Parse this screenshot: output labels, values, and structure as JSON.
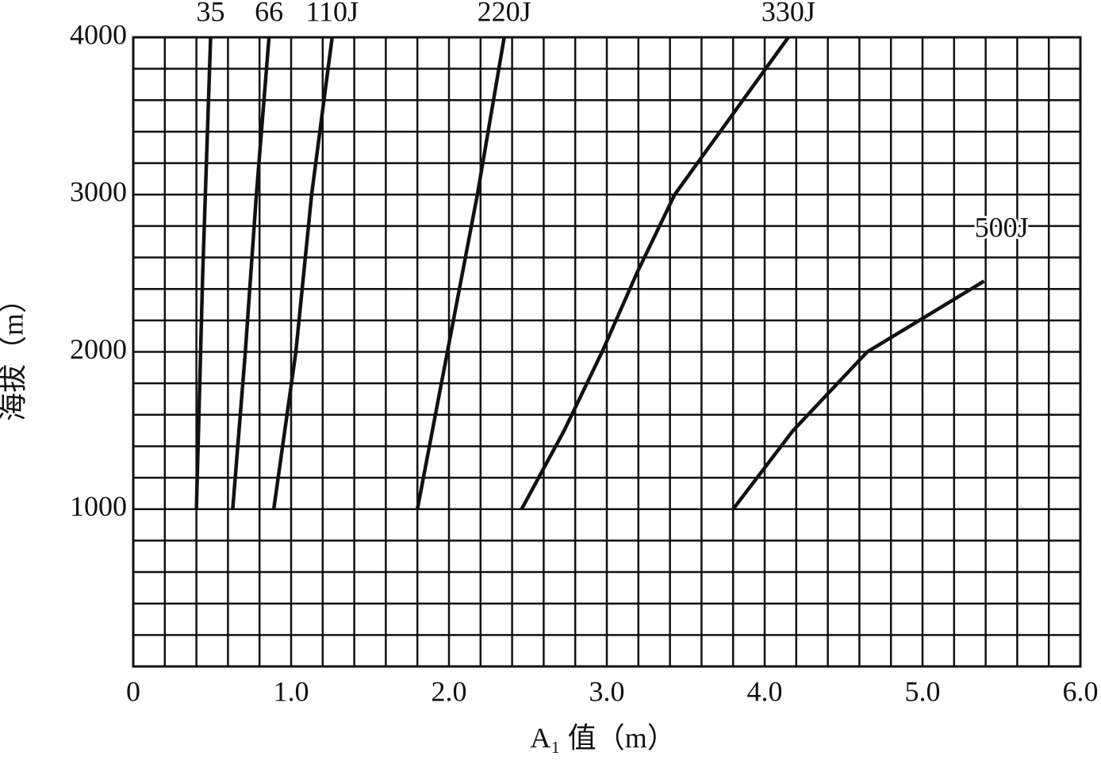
{
  "chart_data": {
    "type": "line",
    "x_label": "A₁ 值（m）",
    "y_label": "海拔（m）",
    "xlim": [
      0,
      6
    ],
    "ylim": [
      0,
      4000
    ],
    "xticks": [
      0,
      {
        "value": 1,
        "label": "1.0"
      },
      {
        "value": 2,
        "label": "2.0"
      },
      {
        "value": 3,
        "label": "3.0"
      },
      {
        "value": 4,
        "label": "4.0"
      },
      {
        "value": 5,
        "label": "5.0"
      },
      {
        "value": 6,
        "label": "6.0"
      }
    ],
    "yticks": [
      1000,
      2000,
      3000,
      4000
    ],
    "xminor": [
      0.2,
      0.4,
      0.6,
      0.8,
      1.2,
      1.4,
      1.6,
      1.8,
      2.2,
      2.4,
      2.6,
      2.8,
      3.2,
      3.4,
      3.6,
      3.8,
      4.2,
      4.4,
      4.6,
      4.8,
      5.2,
      5.4,
      5.6,
      5.8
    ],
    "yminor": [
      200,
      400,
      600,
      800,
      1200,
      1400,
      1600,
      1800,
      2200,
      2400,
      2600,
      2800,
      3200,
      3400,
      3600,
      3800
    ],
    "grid": true,
    "series": [
      {
        "name": "35",
        "color": "#111111",
        "x": [
          0.4,
          0.44,
          0.49
        ],
        "values": [
          1000,
          2500,
          4000
        ]
      },
      {
        "name": "66",
        "color": "#111111",
        "x": [
          0.63,
          0.71,
          0.78,
          0.86
        ],
        "values": [
          1000,
          2000,
          3000,
          4000
        ]
      },
      {
        "name": "110J",
        "color": "#111111",
        "x": [
          0.89,
          1.03,
          1.13,
          1.26
        ],
        "values": [
          1000,
          2000,
          3000,
          4000
        ]
      },
      {
        "name": "220J",
        "color": "#111111",
        "x": [
          1.8,
          1.99,
          2.18,
          2.35
        ],
        "values": [
          1000,
          2000,
          3000,
          4000
        ]
      },
      {
        "name": "330J",
        "color": "#111111",
        "x": [
          2.46,
          2.73,
          2.97,
          3.19,
          3.43,
          4.15
        ],
        "values": [
          1000,
          1500,
          2000,
          2500,
          3000,
          4000
        ]
      },
      {
        "name": "500J",
        "color": "#111111",
        "x": [
          3.8,
          4.18,
          4.65,
          4.98,
          5.39
        ],
        "values": [
          1000,
          1500,
          2000,
          2200,
          2450
        ]
      }
    ]
  }
}
